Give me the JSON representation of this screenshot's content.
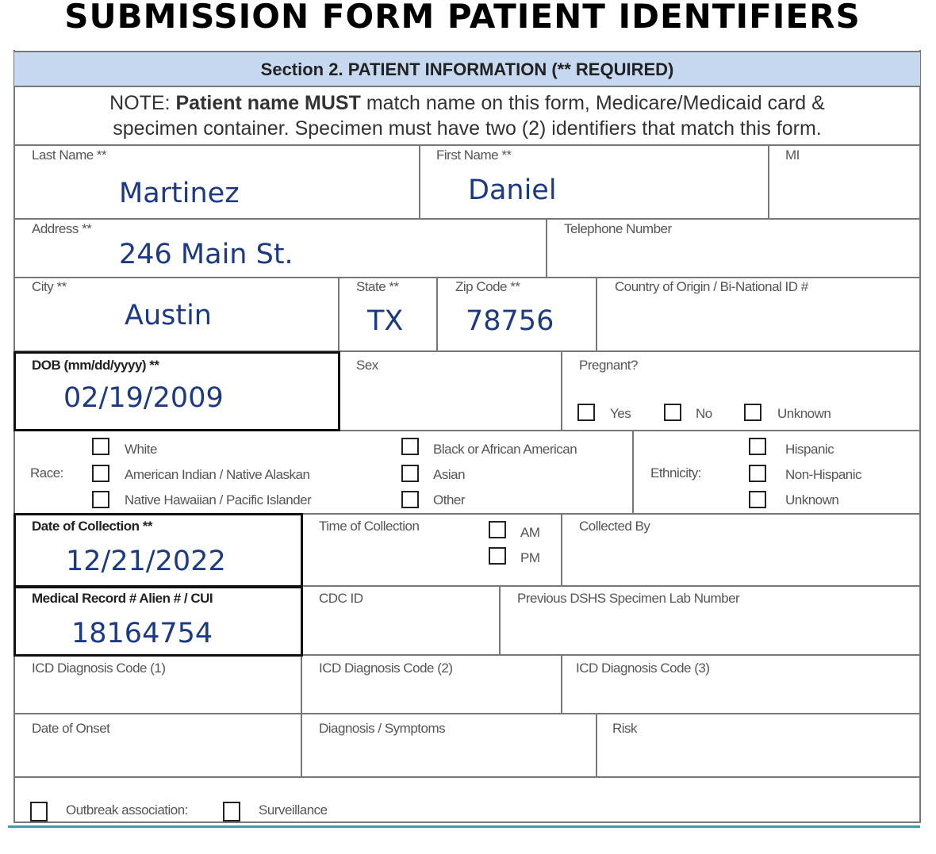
{
  "title": "SUBMISSION FORM PATIENT IDENTIFIERS",
  "section_header": "Section 2. PATIENT INFORMATION (** REQUIRED)",
  "note": {
    "prefix": "NOTE: ",
    "bold": "Patient name MUST",
    "line1_rest": " match name on this form, Medicare/Medicaid card &",
    "line2": "specimen container. Specimen must have two (2) identifiers that match this form."
  },
  "fields": {
    "last_name": {
      "label": "Last Name **",
      "value": "Martinez"
    },
    "first_name": {
      "label": "First Name **",
      "value": "Daniel"
    },
    "mi": {
      "label": "MI",
      "value": ""
    },
    "address": {
      "label": "Address **",
      "value": "246 Main St."
    },
    "telephone": {
      "label": "Telephone Number",
      "value": ""
    },
    "city": {
      "label": "City **",
      "value": "Austin"
    },
    "state": {
      "label": "State **",
      "value": "TX"
    },
    "zip": {
      "label": "Zip Code **",
      "value": "78756"
    },
    "country": {
      "label": "Country of Origin / Bi-National ID #",
      "value": ""
    },
    "dob": {
      "label": "DOB (mm/dd/yyyy) **",
      "value": "02/19/2009"
    },
    "sex": {
      "label": "Sex",
      "value": ""
    },
    "pregnant": {
      "label": "Pregnant?",
      "options": [
        "Yes",
        "No",
        "Unknown"
      ]
    },
    "race": {
      "label": "Race:",
      "options": [
        "White",
        "American Indian / Native Alaskan",
        "Native Hawaiian / Pacific Islander",
        "Black or African American",
        "Asian",
        "Other"
      ]
    },
    "ethnicity": {
      "label": "Ethnicity:",
      "options": [
        "Hispanic",
        "Non-Hispanic",
        "Unknown"
      ]
    },
    "date_of_collection": {
      "label": "Date of Collection **",
      "value": "12/21/2022"
    },
    "time_of_collection": {
      "label": "Time of Collection",
      "options": [
        "AM",
        "PM"
      ]
    },
    "collected_by": {
      "label": "Collected By"
    },
    "mrn": {
      "label": "Medical Record # Alien # / CUI",
      "value": "18164754"
    },
    "cdc_id": {
      "label": "CDC ID"
    },
    "prev_dshs": {
      "label": "Previous DSHS Specimen Lab Number"
    },
    "icd1": {
      "label": "ICD Diagnosis Code (1)"
    },
    "icd2": {
      "label": "ICD Diagnosis Code (2)"
    },
    "icd3": {
      "label": "ICD Diagnosis Code (3)"
    },
    "onset": {
      "label": "Date of Onset"
    },
    "diagnosis": {
      "label": "Diagnosis / Symptoms"
    },
    "risk": {
      "label": "Risk"
    },
    "outbreak": {
      "label": "Outbreak association:"
    },
    "surveillance": {
      "label": "Surveillance"
    }
  },
  "colors": {
    "header_bg": "#c6d9f1",
    "value_ink": "#1c3a84",
    "bottom_rule": "#3a9ea5"
  }
}
